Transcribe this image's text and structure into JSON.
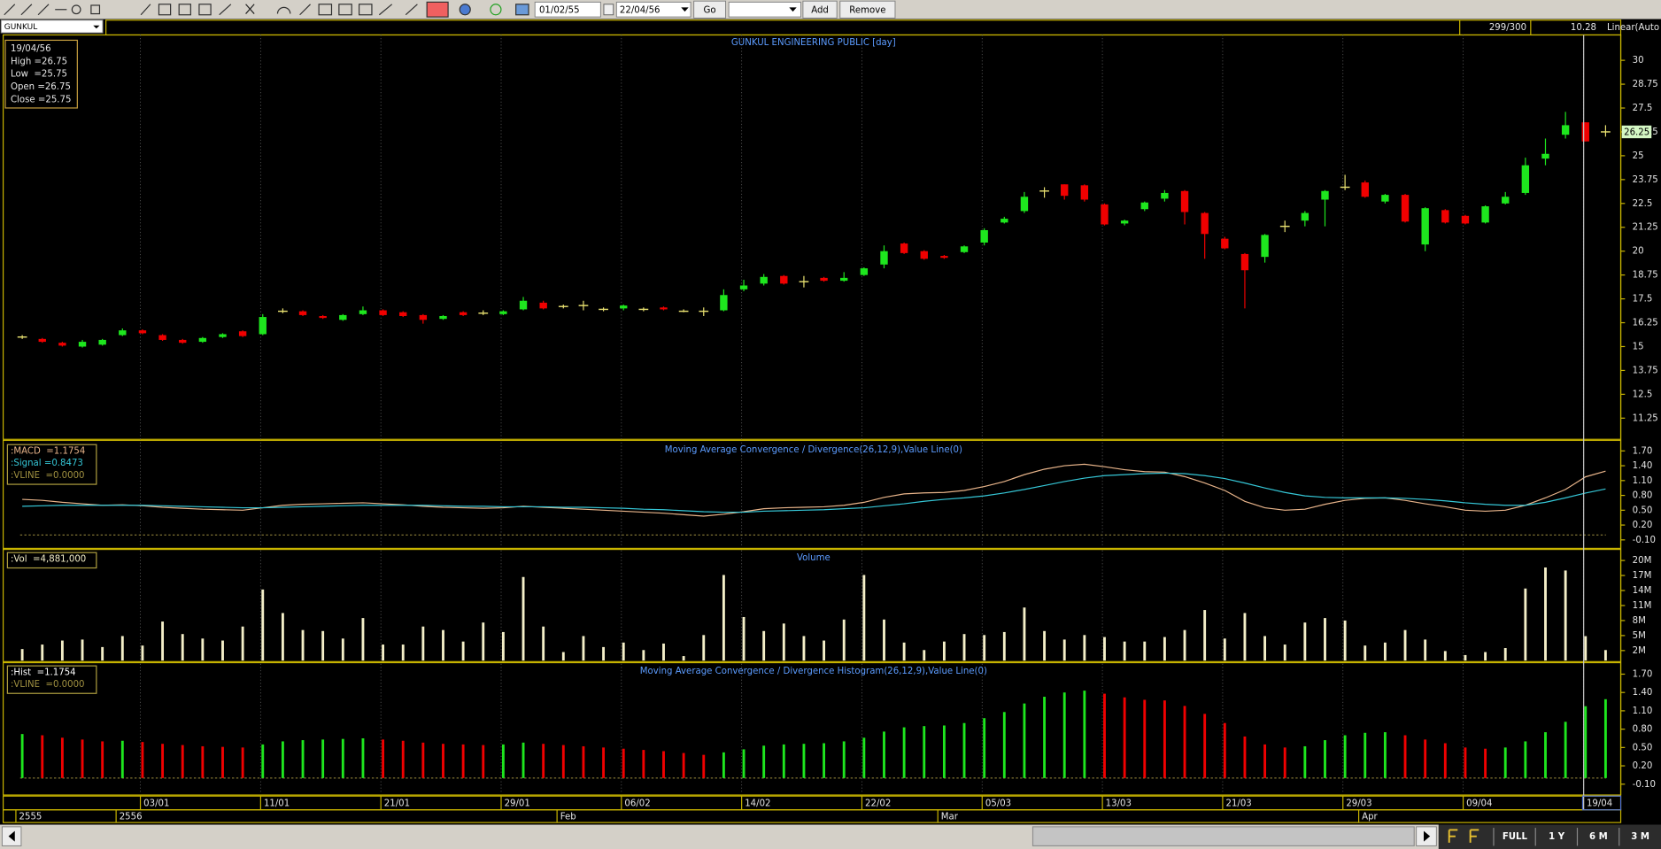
{
  "toolbar": {
    "from_date": "01/02/55",
    "to_date": "22/04/56",
    "go": "Go",
    "add": "Add",
    "remove": "Remove"
  },
  "header": {
    "symbol": "GUNKUL",
    "count": "299/300",
    "reading": "10.28",
    "scale": "Linear(Auto"
  },
  "tooltip": [
    "19/04/56",
    "High =26.75",
    "Low  =25.75",
    "Open =26.75",
    "Close =25.75"
  ],
  "range_buttons": [
    "FULL",
    "1 Y",
    "6 M",
    "3 M"
  ],
  "chart_data": [
    {
      "type": "candlestick",
      "title": "GUNKUL ENGINEERING PUBLIC [day]",
      "categories": [
        null,
        null,
        null,
        null,
        null,
        null,
        "03/01",
        null,
        null,
        null,
        null,
        null,
        "11/01",
        null,
        null,
        null,
        null,
        null,
        "21/01",
        null,
        null,
        null,
        null,
        null,
        "29/01",
        null,
        null,
        null,
        null,
        null,
        "06/02",
        null,
        null,
        null,
        null,
        null,
        "14/02",
        null,
        null,
        null,
        null,
        null,
        "22/02",
        null,
        null,
        null,
        null,
        null,
        "05/03",
        null,
        null,
        null,
        null,
        null,
        "13/03",
        null,
        null,
        null,
        null,
        null,
        "21/03",
        null,
        null,
        null,
        null,
        null,
        "29/03",
        null,
        null,
        null,
        null,
        null,
        "09/04",
        null,
        null,
        null,
        null,
        null,
        "19/04",
        null
      ],
      "periods": [
        "2555",
        null,
        null,
        null,
        null,
        "2556",
        null,
        null,
        null,
        null,
        null,
        null,
        null,
        null,
        null,
        null,
        null,
        null,
        null,
        null,
        null,
        null,
        null,
        null,
        null,
        null,
        null,
        "Feb",
        null,
        null,
        null,
        null,
        null,
        null,
        null,
        null,
        null,
        null,
        null,
        null,
        null,
        null,
        null,
        null,
        null,
        null,
        "Mar",
        null,
        null,
        null,
        null,
        null,
        null,
        null,
        null,
        null,
        null,
        null,
        null,
        null,
        null,
        null,
        null,
        null,
        null,
        null,
        null,
        "Apr",
        null,
        null,
        null,
        null,
        null,
        null,
        null,
        null,
        null,
        null,
        null,
        null
      ],
      "open": [
        15.5,
        15.4,
        15.2,
        15.0,
        15.1,
        15.6,
        15.85,
        15.6,
        15.35,
        15.25,
        15.5,
        15.8,
        15.65,
        16.85,
        16.85,
        16.6,
        16.4,
        16.7,
        16.9,
        16.8,
        16.65,
        16.45,
        16.8,
        16.75,
        16.7,
        16.95,
        17.3,
        17.1,
        17.15,
        16.95,
        17.0,
        16.95,
        17.05,
        16.85,
        16.85,
        16.9,
        18.0,
        18.3,
        18.7,
        18.4,
        18.6,
        18.45,
        18.75,
        19.3,
        20.4,
        20.0,
        19.75,
        19.95,
        20.45,
        21.5,
        22.1,
        23.15,
        23.5,
        23.45,
        22.45,
        21.45,
        22.2,
        22.75,
        23.15,
        22.0,
        20.65,
        19.85,
        19.7,
        21.3,
        21.6,
        22.7,
        23.35,
        23.6,
        22.6,
        22.95,
        20.35,
        22.15,
        21.85,
        21.5,
        22.5,
        23.05,
        24.85,
        26.1,
        26.75,
        26.25
      ],
      "high": [
        15.6,
        15.45,
        15.25,
        15.35,
        15.4,
        15.95,
        15.9,
        15.65,
        15.4,
        15.5,
        15.7,
        15.85,
        16.7,
        17.0,
        16.9,
        16.65,
        16.7,
        17.1,
        16.95,
        16.85,
        16.7,
        16.65,
        16.85,
        16.9,
        16.9,
        17.6,
        17.4,
        17.2,
        17.4,
        17.05,
        17.2,
        17.05,
        17.1,
        16.95,
        17.05,
        18.0,
        18.5,
        18.8,
        18.75,
        18.7,
        18.65,
        18.9,
        19.15,
        20.3,
        20.45,
        20.05,
        19.8,
        20.3,
        21.2,
        21.8,
        23.1,
        23.35,
        23.5,
        23.5,
        22.5,
        21.65,
        22.6,
        23.2,
        23.2,
        22.05,
        20.75,
        19.9,
        20.9,
        21.6,
        22.1,
        23.2,
        24.0,
        23.7,
        23.0,
        23.0,
        22.3,
        22.2,
        21.9,
        22.4,
        23.1,
        24.9,
        25.9,
        27.3,
        26.75,
        26.6
      ],
      "low": [
        15.4,
        15.2,
        15.0,
        14.95,
        15.05,
        15.55,
        15.65,
        15.3,
        15.15,
        15.2,
        15.45,
        15.5,
        15.6,
        16.75,
        16.6,
        16.45,
        16.35,
        16.65,
        16.6,
        16.55,
        16.2,
        16.4,
        16.6,
        16.65,
        16.65,
        16.9,
        16.95,
        17.0,
        16.9,
        16.85,
        16.9,
        16.85,
        16.9,
        16.8,
        16.6,
        16.85,
        17.9,
        18.2,
        18.25,
        18.1,
        18.4,
        18.4,
        18.7,
        19.1,
        19.85,
        19.55,
        19.6,
        19.9,
        20.3,
        21.45,
        22.0,
        22.8,
        22.7,
        22.6,
        21.35,
        21.35,
        22.1,
        22.6,
        21.4,
        19.6,
        20.1,
        17.0,
        19.4,
        21.0,
        21.3,
        21.3,
        23.2,
        22.8,
        22.5,
        21.5,
        20.0,
        21.45,
        21.4,
        21.45,
        22.45,
        22.95,
        24.5,
        25.9,
        25.75,
        26.0
      ],
      "close": [
        15.5,
        15.25,
        15.05,
        15.25,
        15.35,
        15.85,
        15.7,
        15.35,
        15.2,
        15.45,
        15.65,
        15.55,
        16.55,
        16.85,
        16.65,
        16.5,
        16.65,
        16.9,
        16.65,
        16.6,
        16.4,
        16.6,
        16.65,
        16.75,
        16.85,
        17.4,
        17.0,
        17.1,
        17.15,
        16.95,
        17.15,
        16.95,
        16.95,
        16.85,
        16.85,
        17.7,
        18.2,
        18.65,
        18.3,
        18.4,
        18.45,
        18.6,
        19.1,
        20.0,
        19.9,
        19.6,
        19.65,
        20.25,
        21.1,
        21.7,
        22.85,
        23.15,
        22.9,
        22.7,
        21.4,
        21.6,
        22.55,
        23.05,
        22.05,
        20.9,
        20.15,
        19.0,
        20.85,
        21.3,
        22.0,
        23.15,
        23.35,
        22.85,
        22.95,
        21.55,
        22.25,
        21.5,
        21.45,
        22.35,
        22.85,
        24.5,
        25.1,
        26.6,
        25.75,
        26.25
      ],
      "up_color": "#1ee61e",
      "down_color": "#f00000",
      "flat_color": "#e8e070",
      "ylim": [
        10.14,
        31.33
      ],
      "yticks": [
        11.25,
        12.5,
        13.75,
        15,
        16.25,
        17.5,
        18.75,
        20,
        21.25,
        22.5,
        23.75,
        25,
        26.25,
        27.5,
        28.75,
        30
      ],
      "grid": true
    },
    {
      "type": "line",
      "title": "Moving Average Convergence / Divergence(26,12,9),Value Line(0)",
      "series": [
        {
          "name": ":MACD  =1.1754",
          "color": "#e8b48a",
          "values": [
            0.72,
            0.7,
            0.66,
            0.63,
            0.6,
            0.61,
            0.59,
            0.56,
            0.54,
            0.52,
            0.51,
            0.5,
            0.55,
            0.6,
            0.62,
            0.63,
            0.64,
            0.65,
            0.63,
            0.61,
            0.58,
            0.56,
            0.55,
            0.54,
            0.55,
            0.58,
            0.56,
            0.54,
            0.52,
            0.5,
            0.48,
            0.46,
            0.44,
            0.41,
            0.38,
            0.42,
            0.47,
            0.53,
            0.55,
            0.56,
            0.57,
            0.6,
            0.66,
            0.76,
            0.83,
            0.85,
            0.86,
            0.9,
            0.98,
            1.08,
            1.22,
            1.33,
            1.4,
            1.43,
            1.38,
            1.32,
            1.28,
            1.27,
            1.18,
            1.05,
            0.9,
            0.68,
            0.55,
            0.5,
            0.52,
            0.62,
            0.7,
            0.74,
            0.75,
            0.7,
            0.63,
            0.57,
            0.5,
            0.48,
            0.5,
            0.6,
            0.75,
            0.92,
            1.1754,
            1.29
          ]
        },
        {
          "name": ":Signal =0.8473",
          "color": "#35c6d6",
          "values": [
            0.58,
            0.59,
            0.6,
            0.6,
            0.6,
            0.6,
            0.6,
            0.59,
            0.58,
            0.57,
            0.56,
            0.55,
            0.55,
            0.56,
            0.57,
            0.58,
            0.59,
            0.6,
            0.6,
            0.6,
            0.6,
            0.59,
            0.58,
            0.58,
            0.57,
            0.57,
            0.57,
            0.56,
            0.56,
            0.55,
            0.54,
            0.52,
            0.51,
            0.49,
            0.47,
            0.46,
            0.46,
            0.48,
            0.49,
            0.5,
            0.51,
            0.53,
            0.55,
            0.59,
            0.63,
            0.68,
            0.72,
            0.75,
            0.79,
            0.85,
            0.92,
            1.0,
            1.08,
            1.15,
            1.2,
            1.22,
            1.24,
            1.25,
            1.24,
            1.2,
            1.14,
            1.05,
            0.95,
            0.86,
            0.79,
            0.76,
            0.75,
            0.75,
            0.75,
            0.74,
            0.72,
            0.69,
            0.65,
            0.62,
            0.6,
            0.6,
            0.66,
            0.75,
            0.8473,
            0.93
          ]
        }
      ],
      "vline": {
        "name": ":VLINE  =0.0000",
        "value": 0,
        "color": "#a09040"
      },
      "ylim": [
        -0.25,
        1.87
      ],
      "yticks": [
        {
          "value": -0.1,
          "label": "-0.10"
        },
        {
          "value": 0.2,
          "label": "0.20"
        },
        {
          "value": 0.5,
          "label": "0.50"
        },
        {
          "value": 0.8,
          "label": "0.80"
        },
        {
          "value": 1.1,
          "label": "1.10"
        },
        {
          "value": 1.4,
          "label": "1.40"
        },
        {
          "value": 1.7,
          "label": "1.70"
        }
      ]
    },
    {
      "type": "bar",
      "title": "Volume",
      "name": ":Vol  =4,881,000",
      "color": "#f4efc8",
      "values": [
        2300000,
        3200000,
        4000000,
        4200000,
        2700000,
        4900000,
        3000000,
        7800000,
        5300000,
        4400000,
        4000000,
        6800000,
        14200000,
        9500000,
        6100000,
        5900000,
        4400000,
        8500000,
        3200000,
        3200000,
        6800000,
        6100000,
        3800000,
        7600000,
        5700000,
        16700000,
        6800000,
        1700000,
        4900000,
        2700000,
        3600000,
        2100000,
        3400000,
        900000,
        5100000,
        17100000,
        8700000,
        5900000,
        7400000,
        4900000,
        4000000,
        8200000,
        17100000,
        8200000,
        3600000,
        2100000,
        3800000,
        5300000,
        5100000,
        5700000,
        10600000,
        5900000,
        4200000,
        5100000,
        4700000,
        3800000,
        3800000,
        4700000,
        6100000,
        10100000,
        4400000,
        9500000,
        4900000,
        3200000,
        7600000,
        8500000,
        8000000,
        3000000,
        3600000,
        6100000,
        4200000,
        1900000,
        1100000,
        1700000,
        2500000,
        14400000,
        18600000,
        18000000,
        4881000,
        2100000
      ],
      "ylim": [
        0,
        22000000
      ],
      "yticks": [
        {
          "value": 2000000,
          "label": "2M"
        },
        {
          "value": 5000000,
          "label": "5M"
        },
        {
          "value": 8000000,
          "label": "8M"
        },
        {
          "value": 11000000,
          "label": "11M"
        },
        {
          "value": 14000000,
          "label": "14M"
        },
        {
          "value": 17000000,
          "label": "17M"
        },
        {
          "value": 20000000,
          "label": "20M"
        }
      ]
    },
    {
      "type": "bar",
      "title": "Moving Average Convergence / Divergence Histogram(26,12,9),Value Line(0)",
      "name": ":Hist  =1.1754",
      "up_color": "#1ee61e",
      "down_color": "#f00000",
      "values": [
        0.72,
        0.7,
        0.66,
        0.63,
        0.6,
        0.61,
        0.59,
        0.56,
        0.54,
        0.52,
        0.51,
        0.5,
        0.55,
        0.6,
        0.62,
        0.63,
        0.64,
        0.65,
        0.63,
        0.61,
        0.58,
        0.56,
        0.55,
        0.54,
        0.55,
        0.58,
        0.56,
        0.54,
        0.52,
        0.5,
        0.48,
        0.46,
        0.44,
        0.41,
        0.38,
        0.42,
        0.47,
        0.53,
        0.55,
        0.56,
        0.57,
        0.6,
        0.66,
        0.76,
        0.83,
        0.85,
        0.86,
        0.9,
        0.98,
        1.08,
        1.22,
        1.33,
        1.4,
        1.43,
        1.38,
        1.32,
        1.28,
        1.27,
        1.18,
        1.05,
        0.9,
        0.68,
        0.55,
        0.5,
        0.52,
        0.62,
        0.7,
        0.74,
        0.75,
        0.7,
        0.63,
        0.57,
        0.5,
        0.48,
        0.5,
        0.6,
        0.75,
        0.92,
        1.1754,
        1.29
      ],
      "vline": {
        "name": ":VLINE  =0.0000",
        "value": 0,
        "color": "#a09040"
      },
      "ylim": [
        -0.26,
        1.87
      ],
      "yticks": [
        {
          "value": -0.1,
          "label": "-0.10"
        },
        {
          "value": 0.2,
          "label": "0.20"
        },
        {
          "value": 0.5,
          "label": "0.50"
        },
        {
          "value": 0.8,
          "label": "0.80"
        },
        {
          "value": 1.1,
          "label": "1.10"
        },
        {
          "value": 1.4,
          "label": "1.40"
        },
        {
          "value": 1.7,
          "label": "1.70"
        }
      ]
    }
  ]
}
